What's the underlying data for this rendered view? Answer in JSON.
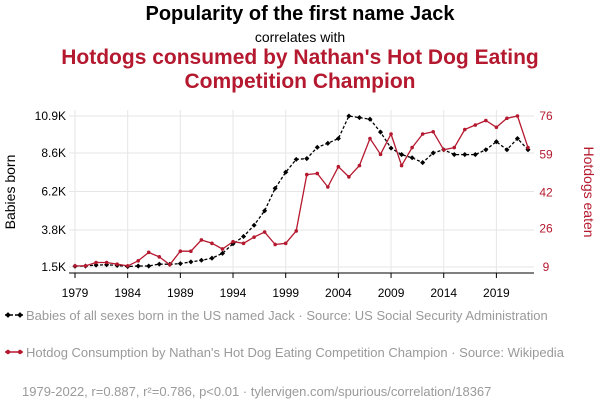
{
  "header": {
    "title": "Popularity of the first name Jack",
    "subtitle": "correlates with",
    "headline": "Hotdogs consumed by Nathan's Hot Dog Eating Competition Champion",
    "headline_color": "#b5192f"
  },
  "legend": [
    {
      "text": "Babies of all sexes born in the US named Jack · Source: US Social Security Administration",
      "color": "#000000",
      "style": "dashed-diamond"
    },
    {
      "text": "Hotdog Consumption by Nathan's Hot Dog Eating Competition Champion · Source: Wikipedia",
      "color": "#b5192f",
      "style": "solid-circle"
    }
  ],
  "footer": "1979-2022, r=0.887, r²=0.786, p<0.01 · tylervigen.com/spurious/correlation/18367",
  "chart_data": {
    "type": "line",
    "x": [
      1979,
      1980,
      1981,
      1982,
      1983,
      1984,
      1985,
      1986,
      1987,
      1988,
      1989,
      1990,
      1991,
      1992,
      1993,
      1994,
      1995,
      1996,
      1997,
      1998,
      1999,
      2000,
      2001,
      2002,
      2003,
      2004,
      2005,
      2006,
      2007,
      2008,
      2009,
      2010,
      2011,
      2012,
      2013,
      2014,
      2015,
      2016,
      2017,
      2018,
      2019,
      2020,
      2021,
      2022
    ],
    "xticks": [
      1979,
      1984,
      1989,
      1994,
      1999,
      2004,
      2009,
      2014,
      2019
    ],
    "y_left": {
      "label": "Babies born",
      "lim": [
        1500,
        10900
      ],
      "ticks": [
        1500,
        3800,
        6200,
        8600,
        10900
      ],
      "tick_labels": [
        "1.5K",
        "3.8K",
        "6.2K",
        "8.6K",
        "10.9K"
      ]
    },
    "y_right": {
      "label": "Hotdogs eaten",
      "lim": [
        9,
        76
      ],
      "ticks": [
        9,
        26,
        42,
        59,
        76
      ],
      "tick_labels": [
        "9",
        "26",
        "42",
        "59",
        "76"
      ]
    },
    "series": [
      {
        "name": "Babies of all sexes born in the US named Jack",
        "axis": "left",
        "color": "#000000",
        "values": [
          1550,
          1560,
          1620,
          1640,
          1600,
          1530,
          1560,
          1560,
          1680,
          1670,
          1710,
          1820,
          1920,
          2050,
          2350,
          2950,
          3400,
          4100,
          5000,
          6400,
          7400,
          8200,
          8250,
          8950,
          9200,
          9500,
          10900,
          10800,
          10700,
          9900,
          8900,
          8500,
          8300,
          8000,
          8600,
          8800,
          8500,
          8500,
          8500,
          8800,
          9300,
          8800,
          9500,
          8800
        ]
      },
      {
        "name": "Hotdog Consumption by Nathan's Hot Dog Eating Competition Champion",
        "axis": "right",
        "color": "#b5192f",
        "values": [
          9.5,
          9.5,
          11,
          11,
          10.25,
          9.5,
          11.75,
          15.5,
          13.5,
          10,
          16,
          16,
          21,
          19.5,
          17,
          20.25,
          19.5,
          22.25,
          24.5,
          19,
          19.5,
          25,
          50,
          50.5,
          44.5,
          53.5,
          49,
          54,
          66,
          59,
          68,
          54,
          62,
          68,
          69,
          61,
          62,
          70,
          72,
          74,
          71,
          75,
          76,
          62
        ]
      }
    ]
  }
}
